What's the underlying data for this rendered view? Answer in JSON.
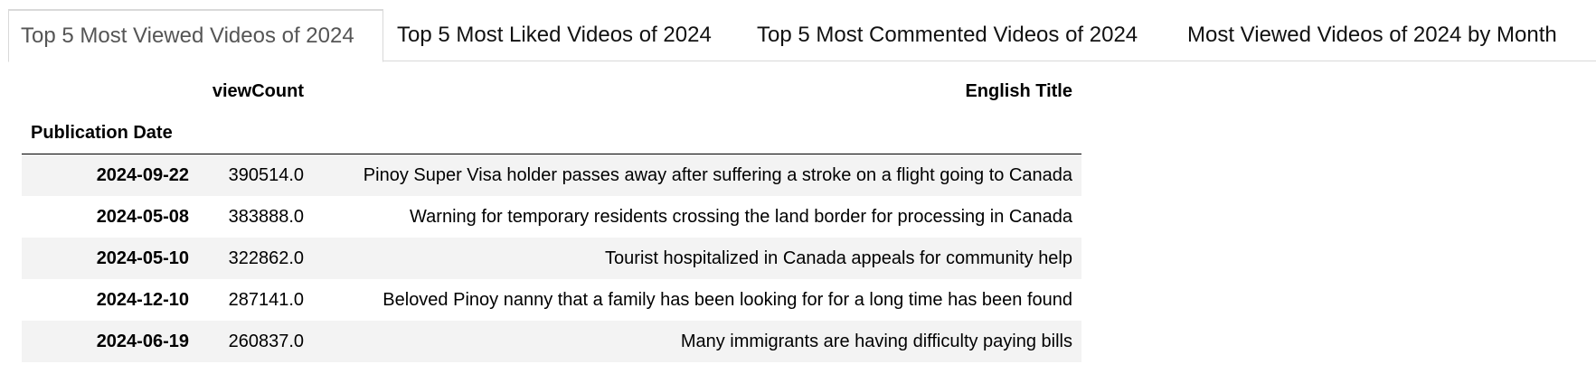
{
  "tabs": [
    {
      "label": "Top 5 Most Viewed Videos of 2024",
      "active": true
    },
    {
      "label": "Top 5 Most Liked Videos of 2024",
      "active": false
    },
    {
      "label": "Top 5 Most Commented Videos of 2024",
      "active": false
    },
    {
      "label": "Most Viewed Videos of 2024 by Month",
      "active": false
    }
  ],
  "table": {
    "columns": {
      "viewCount": "viewCount",
      "title": "English Title"
    },
    "index_name": "Publication Date",
    "rows": [
      {
        "date": "2024-09-22",
        "views": "390514.0",
        "title": "Pinoy Super Visa holder passes away after suffering a stroke on a flight going to Canada"
      },
      {
        "date": "2024-05-08",
        "views": "383888.0",
        "title": "Warning for temporary residents crossing the land border for processing in Canada"
      },
      {
        "date": "2024-05-10",
        "views": "322862.0",
        "title": "Tourist hospitalized in Canada appeals for community help"
      },
      {
        "date": "2024-12-10",
        "views": "287141.0",
        "title": "Beloved Pinoy nanny that a family has been looking for for a long time has been found"
      },
      {
        "date": "2024-06-19",
        "views": "260837.0",
        "title": "Many immigrants are having difficulty paying bills"
      }
    ]
  }
}
